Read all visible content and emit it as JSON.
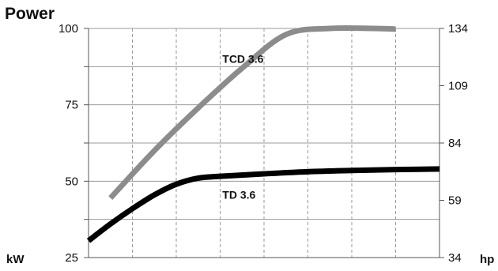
{
  "chart_data": {
    "type": "line",
    "title": "Power",
    "left_axis": {
      "unit": "kW",
      "ylim": [
        25,
        100
      ],
      "ticks": [
        25,
        50,
        75,
        100
      ]
    },
    "right_axis": {
      "unit": "hp",
      "ylim": [
        34,
        134
      ],
      "ticks": [
        34,
        59,
        84,
        109,
        134
      ]
    },
    "x_categories": 8,
    "grid": true,
    "series": [
      {
        "name": "TCD 3.6",
        "color": "#8c8c8c",
        "x": [
          0.5,
          1.5,
          2.5,
          3.5,
          4.5,
          5.5,
          6.5,
          7.0
        ],
        "values": [
          44.5,
          60,
          74,
          87,
          98,
          100,
          100,
          99.8
        ]
      },
      {
        "name": "TD 3.6",
        "color": "#000000",
        "x": [
          0.0,
          0.5,
          1.0,
          1.5,
          2.0,
          2.5,
          3.0,
          4.0,
          5.0,
          6.0,
          7.0,
          8.0
        ],
        "values": [
          30.5,
          36,
          41,
          45.5,
          49,
          51,
          51.6,
          52.4,
          53.1,
          53.5,
          53.8,
          54
        ]
      }
    ]
  }
}
